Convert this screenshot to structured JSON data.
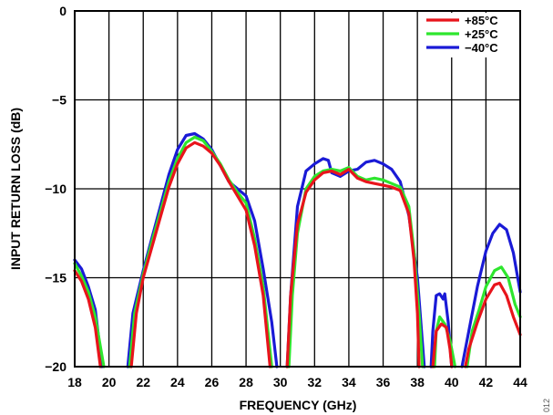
{
  "chart_data": {
    "type": "line",
    "xlabel": "FREQUENCY (GHz)",
    "ylabel": "INPUT RETURN LOSS (dB)",
    "xlim": [
      18,
      44
    ],
    "ylim": [
      -20,
      0
    ],
    "x_ticks": [
      "18",
      "20",
      "22",
      "24",
      "26",
      "28",
      "30",
      "32",
      "34",
      "36",
      "38",
      "40",
      "42",
      "44"
    ],
    "y_ticks": [
      "0",
      "−5",
      "−10",
      "−15",
      "−20"
    ],
    "grid": true,
    "legend_position": "top-right",
    "figure_id": "012",
    "series": [
      {
        "name": "+85°C",
        "color": "#e8141b",
        "segments": [
          [
            [
              18.0,
              -14.6
            ],
            [
              18.4,
              -15.2
            ],
            [
              18.8,
              -16.2
            ],
            [
              19.2,
              -17.8
            ],
            [
              19.5,
              -20.0
            ]
          ],
          [
            [
              21.3,
              -20.0
            ],
            [
              21.6,
              -17.0
            ],
            [
              22.0,
              -15.0
            ],
            [
              22.5,
              -13.3
            ],
            [
              23.0,
              -11.6
            ],
            [
              23.5,
              -9.9
            ],
            [
              24.0,
              -8.6
            ],
            [
              24.5,
              -7.7
            ],
            [
              25.0,
              -7.4
            ],
            [
              25.5,
              -7.6
            ],
            [
              26.0,
              -8.0
            ],
            [
              26.5,
              -8.7
            ],
            [
              27.0,
              -9.6
            ],
            [
              27.5,
              -10.4
            ],
            [
              28.0,
              -11.2
            ],
            [
              28.5,
              -13.2
            ],
            [
              29.0,
              -16.0
            ],
            [
              29.4,
              -20.0
            ]
          ],
          [
            [
              30.4,
              -20.0
            ],
            [
              30.6,
              -16.0
            ],
            [
              31.0,
              -12.0
            ],
            [
              31.5,
              -10.2
            ],
            [
              32.0,
              -9.5
            ],
            [
              32.5,
              -9.1
            ],
            [
              33.0,
              -9.0
            ],
            [
              33.5,
              -9.2
            ],
            [
              34.0,
              -8.9
            ],
            [
              34.5,
              -9.4
            ],
            [
              35.0,
              -9.6
            ],
            [
              35.5,
              -9.7
            ],
            [
              36.0,
              -9.8
            ],
            [
              36.5,
              -9.9
            ],
            [
              37.0,
              -10.1
            ],
            [
              37.5,
              -11.4
            ],
            [
              37.8,
              -14.0
            ],
            [
              38.0,
              -17.0
            ],
            [
              38.1,
              -20.0
            ]
          ],
          [
            [
              38.9,
              -20.0
            ],
            [
              39.1,
              -18.0
            ],
            [
              39.4,
              -17.6
            ],
            [
              39.7,
              -17.8
            ],
            [
              39.9,
              -19.0
            ],
            [
              40.0,
              -20.0
            ]
          ],
          [
            [
              40.8,
              -20.0
            ],
            [
              41.0,
              -19.0
            ],
            [
              41.5,
              -17.5
            ],
            [
              42.0,
              -16.2
            ],
            [
              42.5,
              -15.4
            ],
            [
              42.8,
              -15.3
            ],
            [
              43.2,
              -16.0
            ],
            [
              43.6,
              -17.2
            ],
            [
              44.0,
              -18.2
            ]
          ]
        ]
      },
      {
        "name": "+25°C",
        "color": "#2ee62e",
        "segments": [
          [
            [
              18.0,
              -14.2
            ],
            [
              18.4,
              -14.9
            ],
            [
              18.8,
              -15.8
            ],
            [
              19.2,
              -17.2
            ],
            [
              19.7,
              -20.0
            ]
          ],
          [
            [
              21.2,
              -20.0
            ],
            [
              21.5,
              -17.0
            ],
            [
              22.0,
              -14.8
            ],
            [
              22.5,
              -13.0
            ],
            [
              23.0,
              -11.3
            ],
            [
              23.5,
              -9.6
            ],
            [
              24.0,
              -8.3
            ],
            [
              24.5,
              -7.4
            ],
            [
              25.0,
              -7.1
            ],
            [
              25.5,
              -7.3
            ],
            [
              26.0,
              -7.9
            ],
            [
              26.5,
              -8.6
            ],
            [
              27.0,
              -9.5
            ],
            [
              27.5,
              -10.2
            ],
            [
              28.0,
              -10.8
            ],
            [
              28.5,
              -12.8
            ],
            [
              29.0,
              -15.5
            ],
            [
              29.5,
              -20.0
            ]
          ],
          [
            [
              30.5,
              -20.0
            ],
            [
              30.7,
              -16.0
            ],
            [
              31.0,
              -12.5
            ],
            [
              31.5,
              -10.0
            ],
            [
              32.0,
              -9.3
            ],
            [
              32.5,
              -9.0
            ],
            [
              33.0,
              -8.9
            ],
            [
              33.5,
              -9.0
            ],
            [
              34.0,
              -8.8
            ],
            [
              34.5,
              -9.3
            ],
            [
              35.0,
              -9.5
            ],
            [
              35.5,
              -9.4
            ],
            [
              36.0,
              -9.5
            ],
            [
              36.5,
              -9.7
            ],
            [
              37.0,
              -9.9
            ],
            [
              37.5,
              -11.0
            ],
            [
              37.8,
              -13.5
            ],
            [
              38.1,
              -17.0
            ],
            [
              38.3,
              -20.0
            ]
          ],
          [
            [
              39.0,
              -20.0
            ],
            [
              39.1,
              -18.0
            ],
            [
              39.3,
              -17.2
            ],
            [
              39.6,
              -17.6
            ],
            [
              39.9,
              -18.5
            ],
            [
              40.2,
              -20.0
            ]
          ],
          [
            [
              40.9,
              -20.0
            ],
            [
              41.2,
              -18.0
            ],
            [
              41.6,
              -16.8
            ],
            [
              42.0,
              -15.5
            ],
            [
              42.5,
              -14.6
            ],
            [
              42.9,
              -14.4
            ],
            [
              43.3,
              -15.0
            ],
            [
              43.7,
              -16.5
            ],
            [
              44.0,
              -17.2
            ]
          ]
        ]
      },
      {
        "name": "−40°C",
        "color": "#1a1ad6",
        "segments": [
          [
            [
              18.0,
              -14.0
            ],
            [
              18.4,
              -14.5
            ],
            [
              18.8,
              -15.5
            ],
            [
              19.2,
              -16.8
            ],
            [
              19.6,
              -20.0
            ]
          ],
          [
            [
              21.1,
              -20.0
            ],
            [
              21.4,
              -17.0
            ],
            [
              22.0,
              -14.6
            ],
            [
              22.5,
              -12.8
            ],
            [
              23.0,
              -11.0
            ],
            [
              23.5,
              -9.2
            ],
            [
              24.0,
              -7.8
            ],
            [
              24.5,
              -7.0
            ],
            [
              25.0,
              -6.9
            ],
            [
              25.5,
              -7.2
            ],
            [
              26.0,
              -7.8
            ],
            [
              26.5,
              -8.7
            ],
            [
              27.0,
              -9.6
            ],
            [
              27.5,
              -10.0
            ],
            [
              28.0,
              -10.4
            ],
            [
              28.5,
              -11.8
            ],
            [
              29.0,
              -14.5
            ],
            [
              29.5,
              -17.5
            ],
            [
              29.8,
              -20.0
            ]
          ],
          [
            [
              30.4,
              -20.0
            ],
            [
              30.6,
              -16.0
            ],
            [
              31.0,
              -11.0
            ],
            [
              31.5,
              -9.0
            ],
            [
              32.0,
              -8.6
            ],
            [
              32.5,
              -8.3
            ],
            [
              32.8,
              -8.4
            ],
            [
              33.0,
              -9.1
            ],
            [
              33.5,
              -9.3
            ],
            [
              34.0,
              -9.0
            ],
            [
              34.5,
              -8.9
            ],
            [
              35.0,
              -8.5
            ],
            [
              35.5,
              -8.4
            ],
            [
              36.0,
              -8.6
            ],
            [
              36.5,
              -8.9
            ],
            [
              37.0,
              -9.6
            ],
            [
              37.5,
              -11.5
            ],
            [
              38.0,
              -15.0
            ],
            [
              38.4,
              -20.0
            ]
          ],
          [
            [
              38.8,
              -20.0
            ],
            [
              38.9,
              -18.0
            ],
            [
              39.1,
              -16.0
            ],
            [
              39.3,
              -15.9
            ],
            [
              39.5,
              -16.2
            ],
            [
              39.6,
              -15.9
            ],
            [
              39.8,
              -17.5
            ],
            [
              40.0,
              -20.0
            ]
          ],
          [
            [
              40.6,
              -20.0
            ],
            [
              41.0,
              -18.0
            ],
            [
              41.5,
              -15.5
            ],
            [
              42.0,
              -13.5
            ],
            [
              42.4,
              -12.5
            ],
            [
              42.8,
              -12.0
            ],
            [
              43.2,
              -12.3
            ],
            [
              43.6,
              -13.6
            ],
            [
              44.0,
              -15.8
            ]
          ]
        ]
      }
    ]
  }
}
